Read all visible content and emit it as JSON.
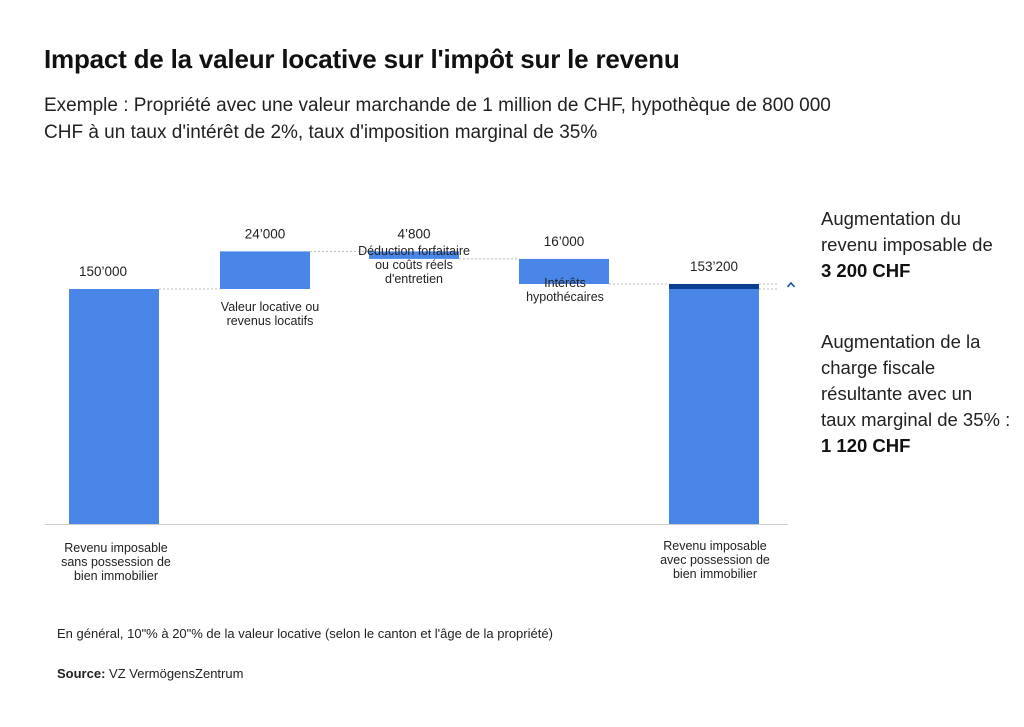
{
  "header": {
    "title": "Impact de la valeur locative sur l'impôt sur le revenu",
    "subtitle": "Exemple : Propriété avec une valeur marchande de 1 million de CHF, hypothèque de 800 000 CHF à un taux d'intérêt de 2%, taux d'imposition marginal de 35%"
  },
  "chart_data": {
    "type": "bar",
    "subtype": "waterfall",
    "steps": [
      {
        "label_lines": [
          "Revenu imposable",
          "sans possession de",
          "bien immobilier"
        ],
        "value_label": "150’000",
        "start": 0,
        "end": 150000,
        "kind": "total"
      },
      {
        "label_lines": [
          "Valeur locative ou",
          "revenus locatifs"
        ],
        "value_label": "24’000",
        "start": 150000,
        "end": 174000,
        "kind": "increase"
      },
      {
        "label_lines": [
          "Déduction forfaitaire",
          "ou coûts réels",
          "d'entretien"
        ],
        "value_label": "4’800",
        "start": 174000,
        "end": 169200,
        "kind": "decrease"
      },
      {
        "label_lines": [
          "Intérêts",
          "hypothécaires"
        ],
        "value_label": "16’000",
        "start": 169200,
        "end": 153200,
        "kind": "decrease"
      },
      {
        "label_lines": [
          "Revenu imposable",
          "avec possession de",
          "bien immobilier"
        ],
        "value_label": "153’200",
        "start": 0,
        "end": 153200,
        "kind": "total",
        "highlight_from": 150000
      }
    ],
    "colors": {
      "bar": "#4a86e8",
      "highlight": "#0d3f91",
      "arrow": "#1a4fa0",
      "baseline": "#cccccc",
      "connector": "#bbbbbb"
    }
  },
  "side": {
    "income_text": "Augmentation du revenu imposable de",
    "income_value": "3 200 CHF",
    "tax_text": "Augmentation de la charge fiscale résultante avec un taux marginal de 35% :",
    "tax_value": "1 120 CHF"
  },
  "footnote": "En général, 10\"% à 20\"% de la valeur locative (selon le canton et l'âge de la propriété)",
  "source": {
    "label": "Source:",
    "text": "VZ VermögensZentrum"
  }
}
